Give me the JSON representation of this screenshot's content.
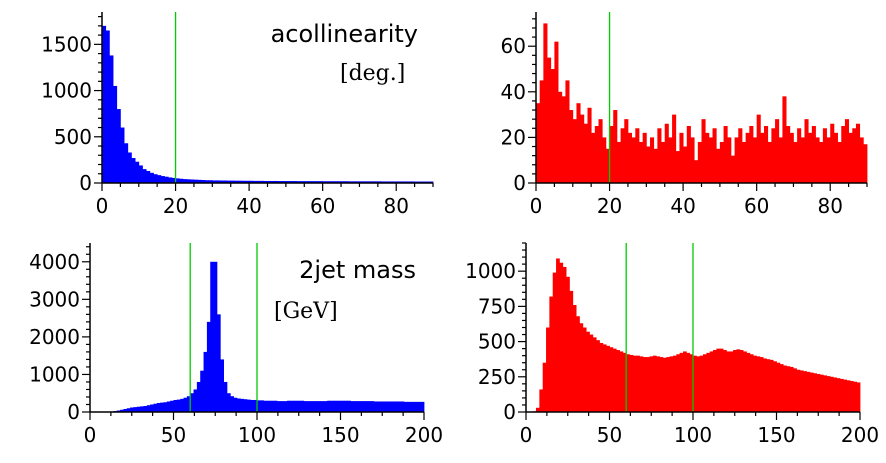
{
  "chart_data": [
    {
      "type": "histogram",
      "panel": "top-left",
      "title": "acollinearity",
      "unit": "[deg.]",
      "color": "#0000ff",
      "xlim": [
        0,
        90
      ],
      "ylim": [
        0,
        1850
      ],
      "xticks": [
        0,
        20,
        40,
        60,
        80
      ],
      "xtick_labels": [
        "0",
        "20",
        "40",
        "60",
        "80"
      ],
      "yticks": [
        0,
        500,
        1000,
        1500
      ],
      "ytick_labels": [
        "0",
        "500",
        "1000",
        "1500"
      ],
      "cut_lines": [
        20
      ],
      "cut_color": "#00cc00",
      "bin_width": 1,
      "values": [
        1700,
        1650,
        1380,
        1050,
        800,
        600,
        430,
        330,
        270,
        230,
        190,
        150,
        130,
        110,
        95,
        85,
        75,
        68,
        60,
        55,
        50,
        46,
        42,
        40,
        38,
        36,
        34,
        32,
        30,
        30,
        28,
        28,
        27,
        27,
        26,
        26,
        25,
        25,
        24,
        24,
        24,
        23,
        23,
        23,
        22,
        22,
        22,
        22,
        21,
        21,
        21,
        21,
        21,
        20,
        20,
        20,
        20,
        20,
        20,
        20,
        19,
        19,
        19,
        19,
        19,
        19,
        19,
        18,
        18,
        18,
        18,
        18,
        18,
        18,
        18,
        18,
        17,
        17,
        17,
        17,
        17,
        17,
        17,
        17,
        17,
        16,
        16,
        16,
        16,
        16
      ]
    },
    {
      "type": "histogram",
      "panel": "top-right",
      "color": "#ff0000",
      "xlim": [
        0,
        90
      ],
      "ylim": [
        0,
        75
      ],
      "xticks": [
        0,
        20,
        40,
        60,
        80
      ],
      "xtick_labels": [
        "0",
        "20",
        "40",
        "60",
        "80"
      ],
      "yticks": [
        0,
        20,
        40,
        60
      ],
      "ytick_labels": [
        "0",
        "20",
        "40",
        "60"
      ],
      "cut_lines": [
        20
      ],
      "cut_color": "#00cc00",
      "bin_width": 1,
      "values": [
        35,
        45,
        70,
        55,
        50,
        62,
        40,
        38,
        45,
        32,
        28,
        35,
        30,
        26,
        33,
        22,
        25,
        28,
        20,
        15,
        25,
        32,
        18,
        24,
        28,
        22,
        20,
        24,
        18,
        22,
        16,
        20,
        15,
        24,
        18,
        26,
        20,
        30,
        14,
        22,
        16,
        25,
        20,
        10,
        18,
        28,
        22,
        20,
        24,
        15,
        18,
        25,
        20,
        12,
        20,
        24,
        18,
        22,
        25,
        20,
        30,
        22,
        25,
        18,
        24,
        28,
        20,
        38,
        25,
        22,
        18,
        24,
        20,
        28,
        22,
        25,
        20,
        18,
        24,
        20,
        26,
        22,
        18,
        25,
        28,
        22,
        24,
        26,
        20,
        17
      ]
    },
    {
      "type": "histogram",
      "panel": "bottom-left",
      "title": "2jet mass",
      "unit": "[GeV]",
      "color": "#0000ff",
      "xlim": [
        0,
        200
      ],
      "ylim": [
        0,
        4500
      ],
      "xticks": [
        0,
        50,
        100,
        150,
        200
      ],
      "xtick_labels": [
        "0",
        "50",
        "100",
        "150",
        "200"
      ],
      "yticks": [
        0,
        1000,
        2000,
        3000,
        4000
      ],
      "ytick_labels": [
        "0",
        "1000",
        "2000",
        "3000",
        "4000"
      ],
      "cut_lines": [
        60,
        100
      ],
      "cut_color": "#00cc00",
      "bin_width": 2,
      "values": [
        2,
        2,
        5,
        5,
        5,
        10,
        15,
        25,
        40,
        60,
        80,
        100,
        120,
        130,
        140,
        150,
        160,
        180,
        200,
        220,
        240,
        250,
        260,
        280,
        300,
        320,
        330,
        350,
        380,
        420,
        500,
        600,
        800,
        1100,
        1600,
        2400,
        4000,
        4000,
        2600,
        1400,
        800,
        500,
        420,
        380,
        360,
        350,
        340,
        330,
        320,
        320,
        310,
        310,
        300,
        300,
        300,
        300,
        290,
        290,
        290,
        300,
        300,
        300,
        300,
        300,
        290,
        290,
        290,
        290,
        290,
        290,
        290,
        300,
        300,
        300,
        300,
        300,
        300,
        300,
        290,
        290,
        290,
        290,
        290,
        290,
        290,
        280,
        280,
        280,
        280,
        280,
        280,
        280,
        280,
        280,
        270,
        270,
        270,
        270,
        270,
        270
      ]
    },
    {
      "type": "histogram",
      "panel": "bottom-right",
      "color": "#ff0000",
      "xlim": [
        0,
        200
      ],
      "ylim": [
        0,
        1200
      ],
      "xticks": [
        0,
        50,
        100,
        150,
        200
      ],
      "xtick_labels": [
        "0",
        "50",
        "100",
        "150",
        "200"
      ],
      "yticks": [
        0,
        250,
        500,
        750,
        1000
      ],
      "ytick_labels": [
        "0",
        "250",
        "500",
        "750",
        "1000"
      ],
      "cut_lines": [
        60,
        100
      ],
      "cut_color": "#00cc00",
      "bin_width": 2,
      "values": [
        0,
        0,
        5,
        30,
        160,
        350,
        600,
        820,
        990,
        1090,
        1060,
        1030,
        960,
        860,
        760,
        680,
        630,
        600,
        570,
        550,
        530,
        510,
        490,
        480,
        470,
        460,
        450,
        440,
        430,
        420,
        410,
        405,
        400,
        400,
        395,
        390,
        390,
        395,
        400,
        395,
        390,
        385,
        390,
        395,
        400,
        410,
        420,
        430,
        420,
        410,
        400,
        395,
        400,
        410,
        420,
        430,
        440,
        450,
        450,
        440,
        430,
        430,
        440,
        445,
        440,
        430,
        420,
        410,
        400,
        395,
        390,
        380,
        375,
        370,
        360,
        350,
        340,
        330,
        325,
        320,
        310,
        300,
        295,
        290,
        285,
        280,
        275,
        270,
        265,
        260,
        255,
        250,
        245,
        240,
        235,
        230,
        225,
        220,
        215,
        210
      ]
    }
  ]
}
